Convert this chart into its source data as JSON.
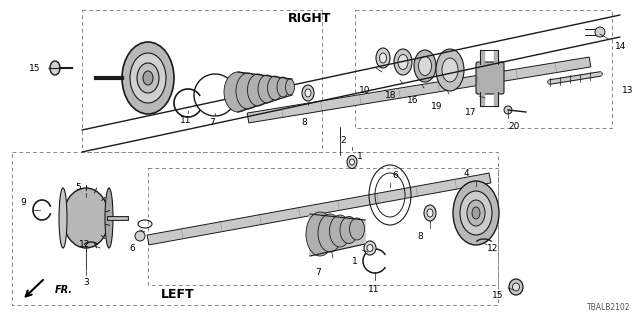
{
  "bg_color": "#ffffff",
  "line_color": "#1a1a1a",
  "diagram_id": "TBALB2102",
  "right_label": "RIGHT",
  "left_label": "LEFT",
  "fr_label": "FR.",
  "figsize": [
    6.4,
    3.2
  ],
  "dpi": 100
}
